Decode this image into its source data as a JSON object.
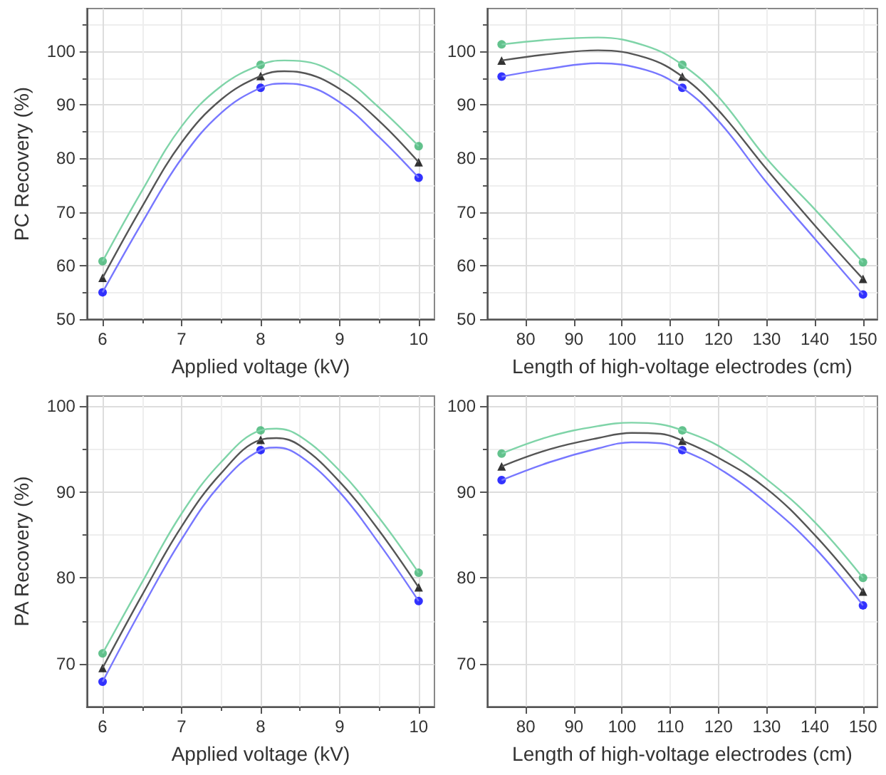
{
  "chart_data": [
    {
      "type": "line",
      "xlabel": "Applied voltage (kV)",
      "ylabel": "PC Recovery (%)",
      "xlim": [
        5.8,
        10.2
      ],
      "xticks": [
        6,
        7,
        8,
        9,
        10
      ],
      "ylim": [
        50,
        108
      ],
      "yticks": [
        50,
        60,
        70,
        80,
        90,
        100
      ],
      "grid": true,
      "series": [
        {
          "type": "line",
          "marker": "none",
          "color": "#7fd4a8",
          "x": [
            6,
            6.5,
            7,
            7.5,
            8,
            8.3,
            8.5,
            9,
            9.5,
            10
          ],
          "values": [
            60.8,
            74,
            86,
            93.5,
            97.5,
            98.3,
            98.2,
            95.5,
            89.5,
            82.3
          ]
        },
        {
          "type": "line",
          "marker": "none",
          "color": "#555555",
          "x": [
            6,
            6.5,
            7,
            7.5,
            8,
            8.3,
            8.5,
            9,
            9.5,
            10
          ],
          "values": [
            57.7,
            71,
            83,
            91,
            95.4,
            96.3,
            96.1,
            93,
            87,
            79.3
          ]
        },
        {
          "type": "line",
          "marker": "none",
          "color": "#7777ff",
          "x": [
            6,
            6.5,
            7,
            7.5,
            8,
            8.3,
            8.5,
            9,
            9.5,
            10
          ],
          "values": [
            55,
            68,
            80,
            88.5,
            93.2,
            94,
            93.8,
            90.5,
            84,
            76.4
          ]
        },
        {
          "type": "scatter",
          "marker": "circle",
          "color": "#3cb371",
          "x": [
            6,
            8,
            10
          ],
          "values": [
            60.8,
            97.5,
            82.3
          ]
        },
        {
          "type": "scatter",
          "marker": "triangle",
          "color": "#000000",
          "x": [
            6,
            8,
            10
          ],
          "values": [
            57.7,
            95.4,
            79.3
          ]
        },
        {
          "type": "scatter",
          "marker": "circle",
          "color": "#0000ff",
          "x": [
            6,
            8,
            10
          ],
          "values": [
            55,
            93.2,
            76.4
          ]
        }
      ]
    },
    {
      "type": "line",
      "xlabel": "Length of high-voltage electrodes (cm)",
      "xlim": [
        72,
        153
      ],
      "xticks": [
        80,
        90,
        100,
        110,
        120,
        130,
        140,
        150
      ],
      "ylim": [
        50,
        108
      ],
      "yticks": [
        50,
        60,
        70,
        80,
        90,
        100
      ],
      "grid": true,
      "series": [
        {
          "type": "line",
          "marker": "none",
          "color": "#7fd4a8",
          "x": [
            75,
            85,
            95,
            105,
            112.5,
            120,
            130,
            140,
            150
          ],
          "values": [
            101.3,
            102.2,
            102.6,
            101,
            97.5,
            91.5,
            80,
            70.5,
            60.6
          ]
        },
        {
          "type": "line",
          "marker": "none",
          "color": "#555555",
          "x": [
            75,
            85,
            95,
            105,
            112.5,
            120,
            130,
            140,
            150
          ],
          "values": [
            98.3,
            99.5,
            100.2,
            98.8,
            95.3,
            89,
            78,
            67.5,
            57.5
          ]
        },
        {
          "type": "line",
          "marker": "none",
          "color": "#7777ff",
          "x": [
            75,
            85,
            95,
            105,
            112.5,
            120,
            130,
            140,
            150
          ],
          "values": [
            95.3,
            96.8,
            97.8,
            96.5,
            93.2,
            87,
            75.5,
            65,
            54.6
          ]
        },
        {
          "type": "scatter",
          "marker": "circle",
          "color": "#3cb371",
          "x": [
            75,
            112.5,
            150
          ],
          "values": [
            101.3,
            97.5,
            60.6
          ]
        },
        {
          "type": "scatter",
          "marker": "triangle",
          "color": "#000000",
          "x": [
            75,
            112.5,
            150
          ],
          "values": [
            98.3,
            95.3,
            57.5
          ]
        },
        {
          "type": "scatter",
          "marker": "circle",
          "color": "#0000ff",
          "x": [
            75,
            112.5,
            150
          ],
          "values": [
            95.3,
            93.2,
            54.6
          ]
        }
      ]
    },
    {
      "type": "line",
      "xlabel": "Applied voltage (kV)",
      "ylabel": "PA Recovery (%)",
      "xlim": [
        5.8,
        10.2
      ],
      "xticks": [
        6,
        7,
        8,
        9,
        10
      ],
      "ylim": [
        65,
        101.2
      ],
      "yticks": [
        70,
        80,
        90,
        100
      ],
      "grid": true,
      "series": [
        {
          "type": "line",
          "marker": "none",
          "color": "#7fd4a8",
          "x": [
            6,
            6.5,
            7,
            7.5,
            8,
            8.2,
            8.5,
            9,
            9.5,
            10
          ],
          "values": [
            71.2,
            79.5,
            87.5,
            93.5,
            97.2,
            97.4,
            96.5,
            92.5,
            87,
            80.6
          ]
        },
        {
          "type": "line",
          "marker": "none",
          "color": "#555555",
          "x": [
            6,
            6.5,
            7,
            7.5,
            8,
            8.2,
            8.5,
            9,
            9.5,
            10
          ],
          "values": [
            69.5,
            78,
            86,
            92.2,
            96.1,
            96.3,
            95.4,
            91.2,
            85.5,
            78.9
          ]
        },
        {
          "type": "line",
          "marker": "none",
          "color": "#7777ff",
          "x": [
            6,
            6.5,
            7,
            7.5,
            8,
            8.2,
            8.5,
            9,
            9.5,
            10
          ],
          "values": [
            67.9,
            76.5,
            84.5,
            91,
            94.9,
            95.2,
            94.2,
            90,
            84,
            77.3
          ]
        },
        {
          "type": "scatter",
          "marker": "circle",
          "color": "#3cb371",
          "x": [
            6,
            8,
            10
          ],
          "values": [
            71.2,
            97.2,
            80.6
          ]
        },
        {
          "type": "scatter",
          "marker": "triangle",
          "color": "#000000",
          "x": [
            6,
            8,
            10
          ],
          "values": [
            69.5,
            96.1,
            78.9
          ]
        },
        {
          "type": "scatter",
          "marker": "circle",
          "color": "#0000ff",
          "x": [
            6,
            8,
            10
          ],
          "values": [
            67.9,
            94.9,
            77.3
          ]
        }
      ]
    },
    {
      "type": "line",
      "xlabel": "Length of high-voltage electrodes (cm)",
      "xlim": [
        72,
        153
      ],
      "xticks": [
        80,
        90,
        100,
        110,
        120,
        130,
        140,
        150
      ],
      "ylim": [
        65,
        101.2
      ],
      "yticks": [
        70,
        80,
        90,
        100
      ],
      "grid": true,
      "series": [
        {
          "type": "line",
          "marker": "none",
          "color": "#7fd4a8",
          "x": [
            75,
            85,
            95,
            102,
            108,
            112.5,
            120,
            130,
            140,
            150
          ],
          "values": [
            94.5,
            96.5,
            97.7,
            98.1,
            97.9,
            97.2,
            95.4,
            91.5,
            86.5,
            80
          ]
        },
        {
          "type": "line",
          "marker": "none",
          "color": "#555555",
          "x": [
            75,
            85,
            95,
            102,
            108,
            112.5,
            120,
            130,
            140,
            150
          ],
          "values": [
            93,
            95,
            96.3,
            96.9,
            96.8,
            96,
            94,
            90.4,
            85,
            78.4
          ]
        },
        {
          "type": "line",
          "marker": "none",
          "color": "#7777ff",
          "x": [
            75,
            85,
            95,
            102,
            108,
            112.5,
            120,
            130,
            140,
            150
          ],
          "values": [
            91.4,
            93.5,
            95.1,
            95.8,
            95.7,
            94.9,
            92.8,
            88.7,
            83.5,
            76.8
          ]
        },
        {
          "type": "scatter",
          "marker": "circle",
          "color": "#3cb371",
          "x": [
            75,
            112.5,
            150
          ],
          "values": [
            94.5,
            97.2,
            80
          ]
        },
        {
          "type": "scatter",
          "marker": "triangle",
          "color": "#000000",
          "x": [
            75,
            112.5,
            150
          ],
          "values": [
            93,
            96,
            78.4
          ]
        },
        {
          "type": "scatter",
          "marker": "circle",
          "color": "#0000ff",
          "x": [
            75,
            112.5,
            150
          ],
          "values": [
            91.4,
            94.9,
            76.8
          ]
        }
      ]
    }
  ]
}
